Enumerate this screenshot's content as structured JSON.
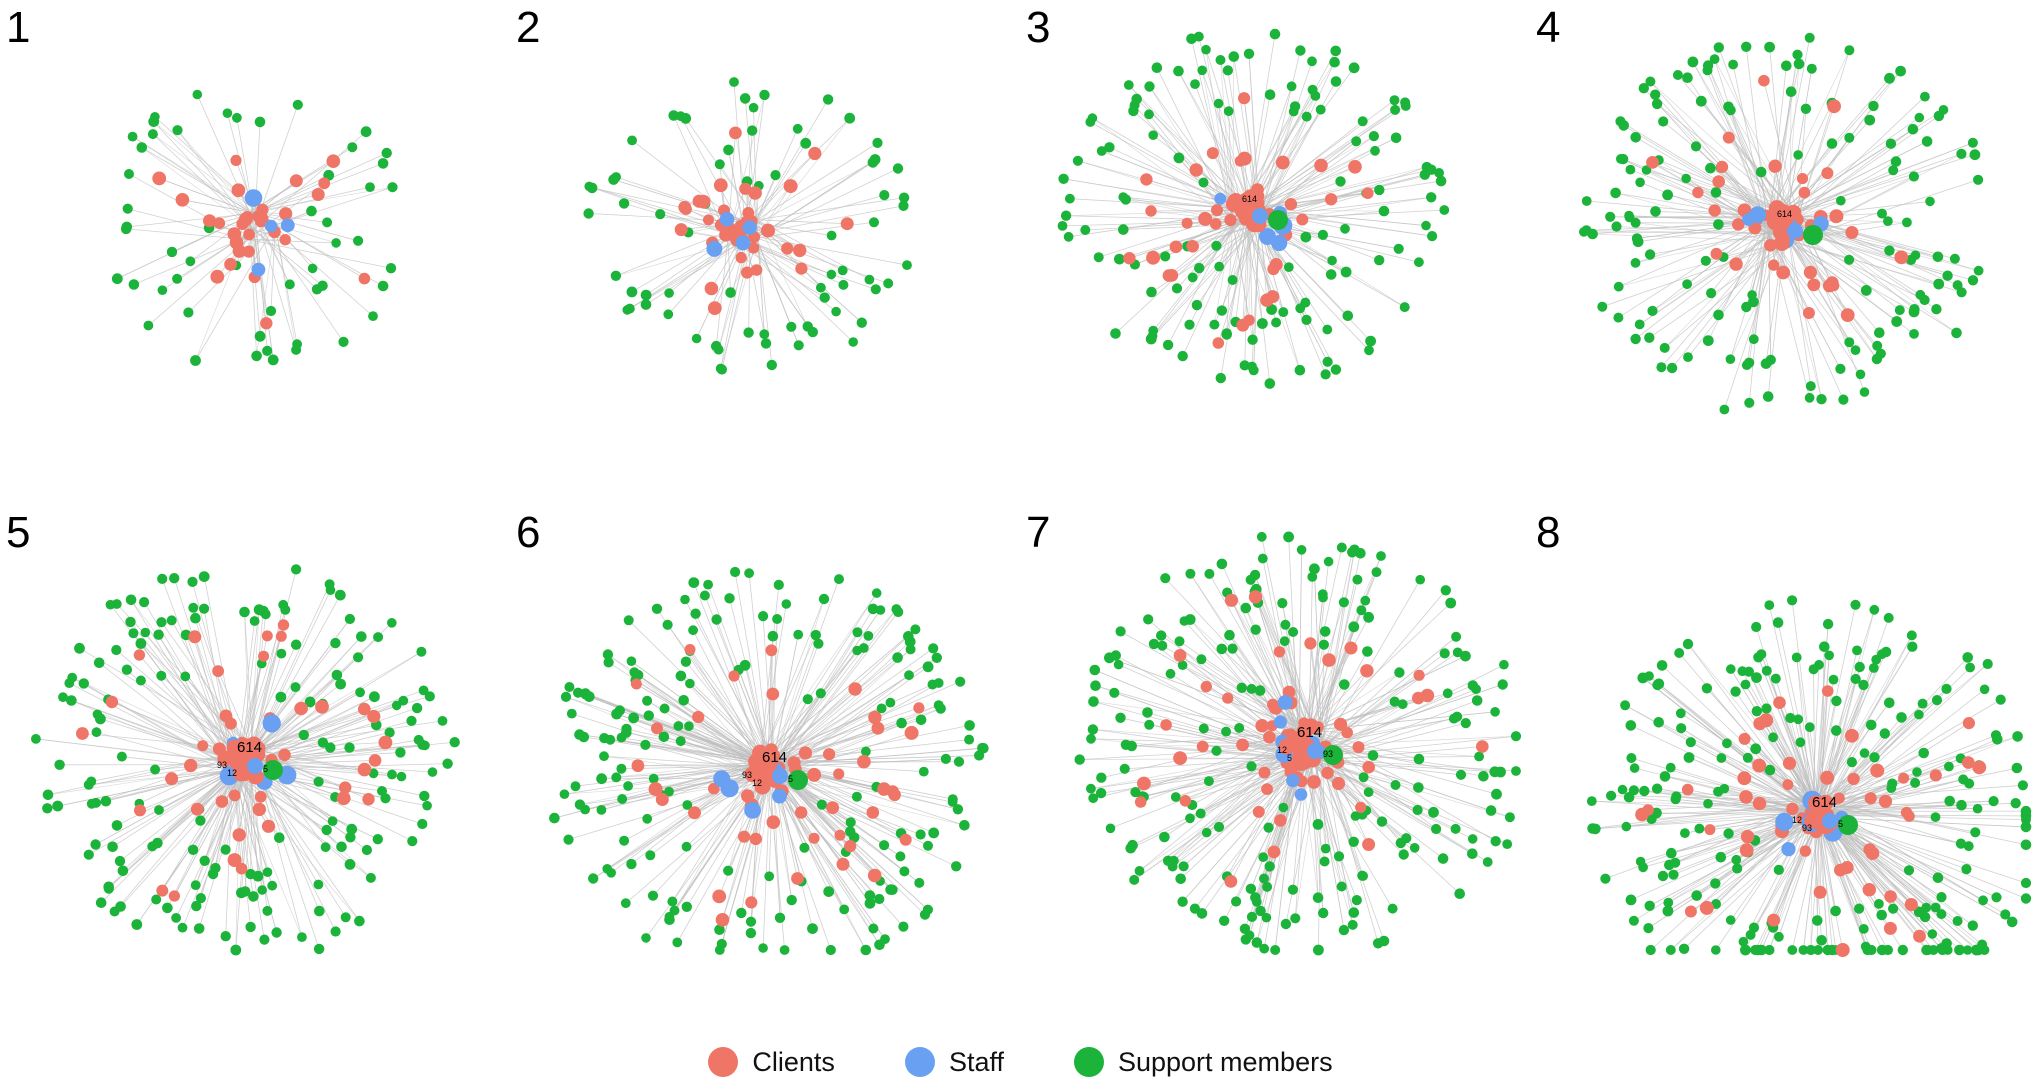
{
  "colors": {
    "clients": "#ef7567",
    "staff": "#6aa0f2",
    "support": "#1bb33a",
    "edge": "#bdbdbd"
  },
  "panels": [
    {
      "number": "1",
      "n_client": 30,
      "n_staff": 4,
      "n_support": 52,
      "spread": 0.55,
      "labels": []
    },
    {
      "number": "2",
      "n_client": 38,
      "n_staff": 4,
      "n_support": 70,
      "spread": 0.6,
      "labels": []
    },
    {
      "number": "3",
      "n_client": 42,
      "n_staff": 6,
      "n_support": 130,
      "spread": 0.72,
      "labels": [
        "614"
      ]
    },
    {
      "number": "4",
      "n_client": 48,
      "n_staff": 5,
      "n_support": 150,
      "spread": 0.78,
      "labels": [
        "614"
      ]
    },
    {
      "number": "5",
      "n_client": 55,
      "n_staff": 7,
      "n_support": 170,
      "spread": 0.82,
      "labels": [
        "614",
        "93",
        "12",
        "5"
      ]
    },
    {
      "number": "6",
      "n_client": 58,
      "n_staff": 8,
      "n_support": 185,
      "spread": 0.85,
      "labels": [
        "614",
        "93",
        "12",
        "5"
      ]
    },
    {
      "number": "7",
      "n_client": 62,
      "n_staff": 8,
      "n_support": 205,
      "spread": 0.88,
      "labels": [
        "614",
        "12",
        "5",
        "93"
      ]
    },
    {
      "number": "8",
      "n_client": 65,
      "n_staff": 6,
      "n_support": 225,
      "spread": 0.9,
      "labels": [
        "614",
        "12",
        "93",
        "5"
      ]
    }
  ],
  "legend": [
    {
      "label": "Clients",
      "key": "clients"
    },
    {
      "label": "Staff",
      "key": "staff"
    },
    {
      "label": "Support members",
      "key": "support"
    }
  ]
}
